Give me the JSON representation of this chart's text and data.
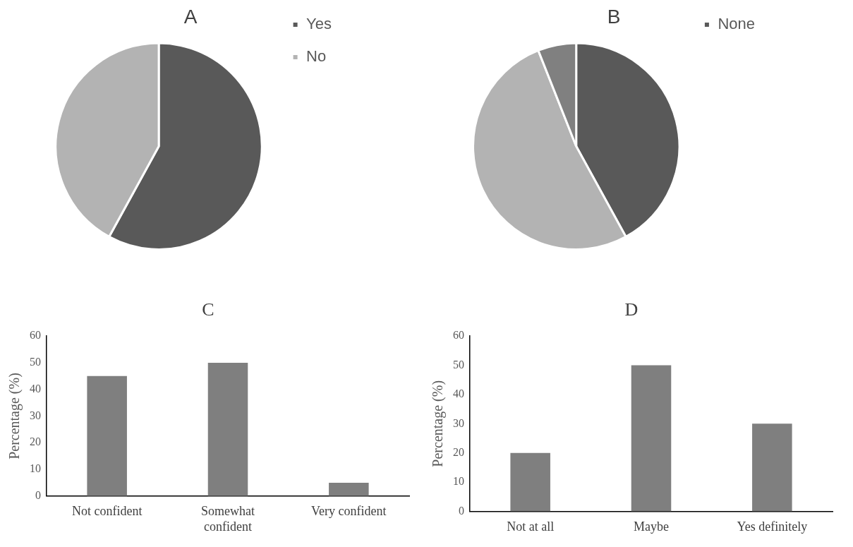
{
  "chart_data": [
    {
      "type": "pie",
      "title": "A",
      "categories": [
        "Yes",
        "No"
      ],
      "values": [
        58,
        42
      ],
      "colors": [
        "#595959",
        "#b3b3b3"
      ],
      "legend": "right"
    },
    {
      "type": "pie",
      "title": "B",
      "categories": [
        "None",
        null,
        null
      ],
      "values": [
        42,
        52,
        6
      ],
      "colors": [
        "#595959",
        "#b3b3b3",
        "#808080"
      ],
      "legend": "right"
    },
    {
      "type": "bar",
      "title": "C",
      "ylabel": "Percentage (%)",
      "categories": [
        "Not confident",
        "Somewhat confident",
        "Very confident"
      ],
      "values": [
        45,
        50,
        5
      ],
      "color": "#7f7f7f",
      "ylim": [
        0,
        60
      ],
      "yticks": [
        0,
        10,
        20,
        30,
        40,
        50,
        60
      ],
      "legend": false,
      "grid": false
    },
    {
      "type": "bar",
      "title": "D",
      "ylabel": "Percentage (%)",
      "categories": [
        "Not at all",
        "Maybe",
        "Yes definitely"
      ],
      "values": [
        20,
        50,
        30
      ],
      "color": "#7f7f7f",
      "ylim": [
        0,
        60
      ],
      "yticks": [
        0,
        10,
        20,
        30,
        40,
        50,
        60
      ],
      "legend": false,
      "grid": false
    }
  ]
}
